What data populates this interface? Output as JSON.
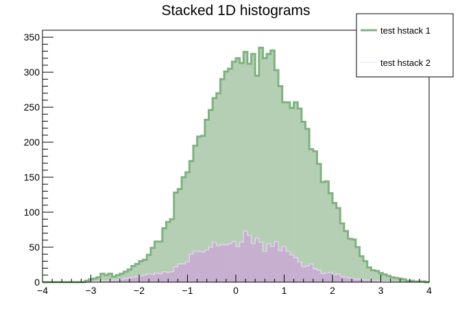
{
  "chart_data": {
    "type": "histogram",
    "title": "Stacked 1D histograms",
    "xlabel": "",
    "ylabel": "",
    "xlim": [
      -4,
      4
    ],
    "ylim": [
      0,
      360
    ],
    "bin_width": 0.08,
    "xticks": [
      -4,
      -3,
      -2,
      -1,
      0,
      1,
      2,
      3,
      4
    ],
    "yticks": [
      0,
      50,
      100,
      150,
      200,
      250,
      300,
      350
    ],
    "grid": false,
    "stacked": true,
    "legend_position": "top-right",
    "series": [
      {
        "name": "test hstack 2",
        "color": "#c6afcf",
        "outline": "#f2dbff",
        "values": [
          0,
          0,
          0,
          0,
          0,
          0,
          0,
          0,
          0,
          0,
          0,
          0,
          1,
          1,
          1,
          2,
          2,
          2,
          3,
          3,
          4,
          5,
          6,
          7,
          8,
          9,
          10,
          12,
          11,
          13,
          12,
          15,
          14,
          15,
          22,
          26,
          26,
          29,
          40,
          44,
          44,
          43,
          46,
          50,
          57,
          52,
          54,
          53,
          55,
          58,
          51,
          57,
          73,
          67,
          55,
          63,
          57,
          44,
          55,
          51,
          58,
          45,
          51,
          44,
          39,
          35,
          29,
          22,
          23,
          26,
          19,
          17,
          12,
          13,
          14,
          10,
          12,
          8,
          7,
          6,
          5,
          4,
          4,
          3,
          3,
          2,
          2,
          1,
          1,
          1,
          0,
          0,
          0,
          0,
          0,
          0,
          0,
          0,
          0,
          0
        ]
      },
      {
        "name": "test hstack 1",
        "color": "#b5cfb5",
        "outline": "#7fb27f",
        "values": [
          0,
          0,
          0,
          0,
          0,
          0,
          0,
          0,
          0,
          0,
          0,
          2,
          3,
          4,
          6,
          10,
          8,
          10,
          5,
          7,
          8,
          10,
          12,
          16,
          18,
          21,
          22,
          27,
          38,
          45,
          46,
          62,
          72,
          75,
          106,
          107,
          124,
          128,
          133,
          151,
          164,
          166,
          186,
          196,
          206,
          218,
          236,
          248,
          250,
          257,
          269,
          256,
          256,
          245,
          271,
          232,
          278,
          276,
          271,
          280,
          245,
          235,
          206,
          213,
          210,
          222,
          219,
          207,
          196,
          164,
          168,
          152,
          131,
          131,
          113,
          103,
          94,
          76,
          66,
          56,
          56,
          46,
          33,
          27,
          18,
          15,
          14,
          12,
          10,
          8,
          7,
          6,
          5,
          4,
          2,
          2,
          1,
          1,
          1,
          0
        ]
      }
    ]
  }
}
